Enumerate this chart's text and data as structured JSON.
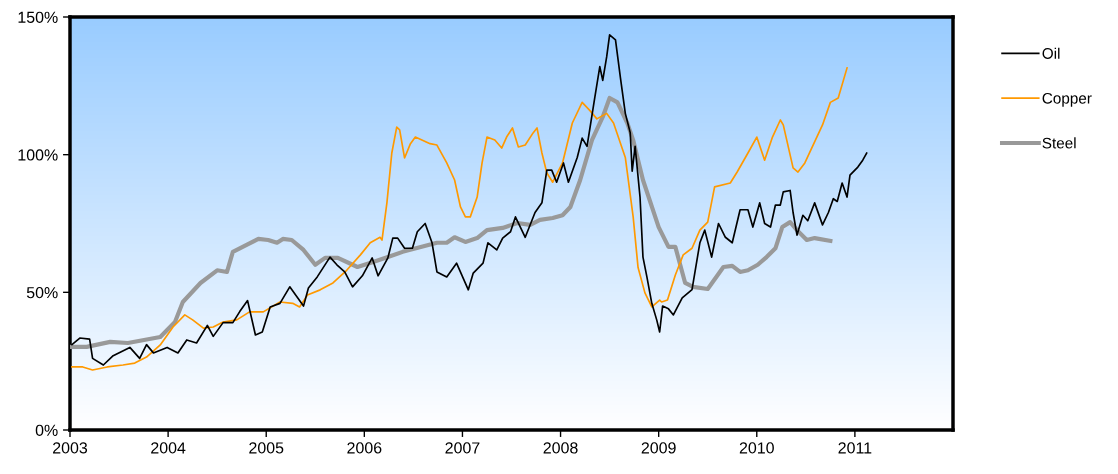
{
  "chart_data": {
    "type": "line",
    "xlim": [
      2003,
      2012
    ],
    "xticks": [
      2003,
      2004,
      2005,
      2006,
      2007,
      2008,
      2009,
      2010,
      2011
    ],
    "ylim": [
      0,
      150
    ],
    "yticks": [
      {
        "value": 0,
        "label": "0%"
      },
      {
        "value": 50,
        "label": "50%"
      },
      {
        "value": 100,
        "label": "100%"
      },
      {
        "value": 150,
        "label": "150%"
      }
    ],
    "grid": false,
    "legend": "right",
    "marker": "none",
    "line_style": "solid",
    "series": [
      {
        "name": "Oil",
        "color": "#000000",
        "x": [
          2003.02,
          2003.1,
          2003.2,
          2003.23,
          2003.34,
          2003.44,
          2003.61,
          2003.71,
          2003.78,
          2003.85,
          2003.99,
          2004.1,
          2004.19,
          2004.29,
          2004.4,
          2004.46,
          2004.56,
          2004.66,
          2004.73,
          2004.81,
          2004.89,
          2004.96,
          2005.04,
          2005.14,
          2005.24,
          2005.32,
          2005.38,
          2005.43,
          2005.52,
          2005.65,
          2005.72,
          2005.8,
          2005.88,
          2005.98,
          2006.08,
          2006.14,
          2006.24,
          2006.29,
          2006.34,
          2006.41,
          2006.49,
          2006.54,
          2006.62,
          2006.69,
          2006.74,
          2006.84,
          2006.94,
          2007.06,
          2007.11,
          2007.21,
          2007.26,
          2007.35,
          2007.41,
          2007.49,
          2007.54,
          2007.64,
          2007.74,
          2007.81,
          2007.86,
          2007.91,
          2007.96,
          2008.03,
          2008.08,
          2008.17,
          2008.22,
          2008.27,
          2008.35,
          2008.4,
          2008.43,
          2008.47,
          2008.5,
          2008.56,
          2008.61,
          2008.66,
          2008.71,
          2008.73,
          2008.76,
          2008.81,
          2008.84,
          2008.88,
          2008.93,
          2008.98,
          2009.01,
          2009.04,
          2009.1,
          2009.15,
          2009.24,
          2009.34,
          2009.42,
          2009.47,
          2009.54,
          2009.61,
          2009.68,
          2009.75,
          2009.83,
          2009.91,
          2009.96,
          2010.03,
          2010.08,
          2010.14,
          2010.19,
          2010.24,
          2010.27,
          2010.34,
          2010.37,
          2010.41,
          2010.47,
          2010.52,
          2010.59,
          2010.67,
          2010.73,
          2010.78,
          2010.82,
          2010.87,
          2010.92,
          2010.95,
          2011.03,
          2011.08,
          2011.12
        ],
        "values": [
          31,
          33.4,
          33,
          26,
          23.6,
          27,
          30,
          26,
          31,
          28,
          30,
          28,
          32.7,
          31.6,
          38,
          34,
          39,
          39,
          43,
          47,
          34.5,
          35.6,
          44.7,
          46,
          52,
          48,
          45,
          51.6,
          55.6,
          62.8,
          60,
          57.4,
          52,
          56,
          62.5,
          56,
          62.5,
          69.7,
          69.7,
          66,
          66,
          72,
          75,
          68,
          57.4,
          55.6,
          60.6,
          50.9,
          57,
          60.6,
          68,
          65.4,
          69.7,
          72,
          77.4,
          70,
          79,
          82.5,
          94.4,
          94.4,
          90,
          97,
          90,
          99,
          106,
          103,
          121,
          132,
          127,
          135.5,
          143.5,
          141.7,
          128,
          115,
          108,
          94,
          103,
          84.6,
          62.8,
          55.6,
          46,
          40,
          35.6,
          45,
          44,
          41.8,
          48,
          51,
          68,
          72.6,
          62.8,
          75,
          70,
          68,
          80,
          80,
          73.7,
          82.5,
          75,
          73.7,
          81.7,
          81.7,
          86.5,
          87,
          79,
          70.8,
          78,
          76,
          82.5,
          74.5,
          79,
          84,
          83,
          89.7,
          84.6,
          92.6,
          95.5,
          98,
          100.6
        ]
      },
      {
        "name": "Copper",
        "color": "#ff9900",
        "x": [
          2003.02,
          2003.13,
          2003.23,
          2003.38,
          2003.54,
          2003.66,
          2003.78,
          2003.92,
          2004.05,
          2004.17,
          2004.25,
          2004.36,
          2004.46,
          2004.56,
          2004.7,
          2004.83,
          2004.97,
          2005.14,
          2005.27,
          2005.34,
          2005.42,
          2005.55,
          2005.68,
          2005.82,
          2005.96,
          2006.06,
          2006.16,
          2006.18,
          2006.23,
          2006.28,
          2006.33,
          2006.36,
          2006.41,
          2006.47,
          2006.52,
          2006.67,
          2006.74,
          2006.84,
          2006.92,
          2006.98,
          2007.03,
          2007.08,
          2007.15,
          2007.2,
          2007.25,
          2007.33,
          2007.4,
          2007.45,
          2007.51,
          2007.57,
          2007.64,
          2007.72,
          2007.76,
          2007.81,
          2007.86,
          2007.92,
          2008.02,
          2008.12,
          2008.22,
          2008.3,
          2008.37,
          2008.47,
          2008.54,
          2008.66,
          2008.74,
          2008.79,
          2008.86,
          2008.93,
          2009.01,
          2009.03,
          2009.09,
          2009.17,
          2009.25,
          2009.34,
          2009.42,
          2009.5,
          2009.57,
          2009.73,
          2009.8,
          2009.91,
          2010.0,
          2010.08,
          2010.16,
          2010.24,
          2010.27,
          2010.37,
          2010.42,
          2010.49,
          2010.67,
          2010.75,
          2010.83,
          2010.92
        ],
        "values": [
          22.9,
          22.9,
          21.8,
          22.9,
          23.6,
          24.3,
          26.5,
          30.9,
          37.4,
          41.8,
          40,
          37,
          37.4,
          39.2,
          40,
          42.9,
          42.9,
          46.5,
          46,
          44.7,
          49,
          50.9,
          53.4,
          58,
          63.6,
          68,
          70,
          69,
          82.5,
          100.6,
          110,
          109,
          98.8,
          104,
          106.4,
          104,
          103.5,
          97,
          90.8,
          81,
          77.4,
          77.4,
          84.6,
          97,
          106.4,
          105.3,
          102.4,
          106.4,
          109.7,
          102.8,
          103.5,
          107.9,
          109.7,
          100.6,
          93.4,
          90,
          97,
          111.5,
          119,
          116,
          113,
          115,
          111.5,
          99,
          77.4,
          59,
          49.8,
          44.7,
          47.2,
          46.5,
          47.2,
          56.3,
          63.6,
          66,
          72.6,
          75.5,
          88.3,
          89.7,
          93.7,
          100.6,
          106.4,
          98,
          106.4,
          112.6,
          110.8,
          95.2,
          93.7,
          97,
          110.8,
          119,
          120.6,
          131.5
        ]
      },
      {
        "name": "Steel",
        "color": "#999999",
        "x": [
          2003.02,
          2003.17,
          2003.41,
          2003.59,
          2003.92,
          2004.07,
          2004.15,
          2004.33,
          2004.5,
          2004.6,
          2004.66,
          2004.8,
          2004.92,
          2005.02,
          2005.11,
          2005.17,
          2005.26,
          2005.38,
          2005.5,
          2005.6,
          2005.73,
          2005.93,
          2006.09,
          2006.24,
          2006.39,
          2006.74,
          2006.84,
          2006.92,
          2007.03,
          2007.15,
          2007.25,
          2007.41,
          2007.56,
          2007.69,
          2007.79,
          2007.92,
          2008.02,
          2008.1,
          2008.2,
          2008.32,
          2008.43,
          2008.5,
          2008.58,
          2008.68,
          2008.74,
          2008.84,
          2009.0,
          2009.1,
          2009.17,
          2009.27,
          2009.35,
          2009.5,
          2009.66,
          2009.75,
          2009.83,
          2009.91,
          2010.01,
          2010.1,
          2010.19,
          2010.26,
          2010.34,
          2010.41,
          2010.51,
          2010.59,
          2010.75
        ],
        "values": [
          30.2,
          30.2,
          32,
          31.6,
          33.8,
          39.2,
          46.5,
          53.4,
          58,
          57.4,
          64.7,
          67.2,
          69.4,
          69,
          68,
          69.4,
          69,
          65.4,
          60,
          62.5,
          62.5,
          59.2,
          61,
          62.8,
          64.7,
          68,
          68,
          70,
          68.3,
          69.7,
          72.6,
          73.4,
          75.2,
          74.5,
          76.3,
          77,
          78,
          81,
          90.8,
          105.3,
          113.7,
          120.6,
          119,
          111.5,
          105.3,
          90.8,
          73.7,
          66.5,
          66.5,
          53.4,
          52,
          51.2,
          59.2,
          59.6,
          57.4,
          58,
          60,
          62.8,
          66,
          73.7,
          75.5,
          72.6,
          69,
          69.7,
          68.7
        ]
      }
    ]
  }
}
